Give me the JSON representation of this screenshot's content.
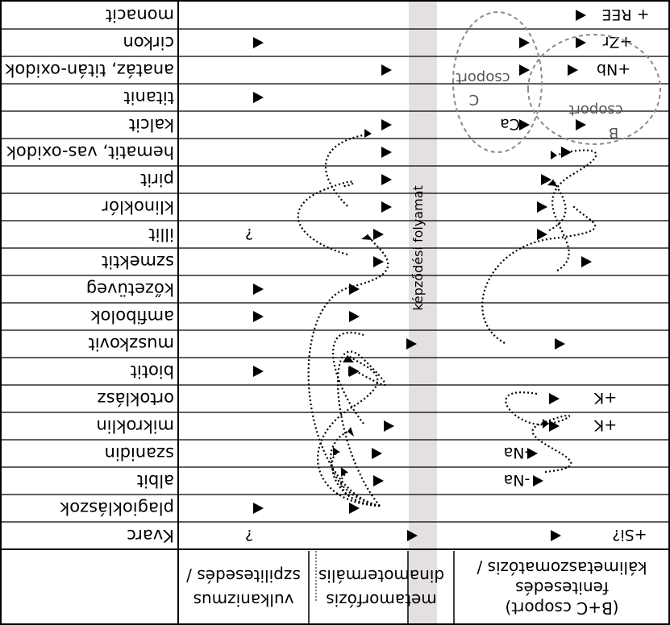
{
  "minerals": [
    "Kvarc",
    "plagioklászok",
    "albit",
    "szanidin",
    "mikroklin",
    "ortoklász",
    "biotit",
    "muszkovit",
    "amfibolok",
    "kőzetüveg",
    "szmektit",
    "illit",
    "klinoklór",
    "pirit",
    "hematit, vas-oxidok",
    "kalcit",
    "titanit",
    "anatáz, titán-oxidok",
    "cirkon",
    "monacit"
  ],
  "headers": {
    "col1": [
      "vulkanizmus",
      "szpilitesedés /"
    ],
    "col2": [
      "metamorfózis",
      "dinamotermális"
    ],
    "col3": [
      "(B+C csoport)",
      "fenitesedés",
      "kálimetaszomatózis /"
    ]
  },
  "center_band_label": "képződési folyamat",
  "chem_labels": {
    "row0": "+Si?",
    "row4": "+K",
    "row5": "+K",
    "row17": "+Nb",
    "row18": "+Zr",
    "row19": "+ REE",
    "row2": "-Na",
    "row3": "-Na",
    "row15": "-Ca",
    "q0": "?",
    "q11": "?"
  },
  "groups": {
    "B": [
      "csoport",
      "B"
    ],
    "C": [
      "csoport",
      "C"
    ]
  },
  "colors": {
    "band": "#e4e0e2",
    "ellipse": "#8a8a8a",
    "marker": "#000000"
  }
}
